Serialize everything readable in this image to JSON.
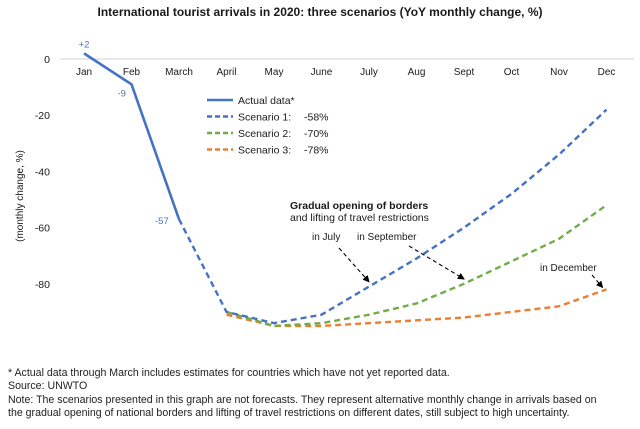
{
  "chart_data": {
    "type": "line",
    "title": "International tourist arrivals in 2020: three scenarios (YoY monthly change, %)",
    "ylabel": "(monthly change, %)",
    "xlabel": "",
    "categories": [
      "Jan",
      "Feb",
      "March",
      "April",
      "May",
      "June",
      "July",
      "Aug",
      "Sept",
      "Oct",
      "Nov",
      "Dec"
    ],
    "ylim": [
      -100,
      0
    ],
    "yticks": [
      0,
      -20,
      -40,
      -60,
      -80
    ],
    "grid": false,
    "legend_position": "center",
    "series": [
      {
        "name": "Actual data*",
        "style": "solid",
        "color": "#4472C4",
        "values": [
          2,
          -9,
          -57,
          null,
          null,
          null,
          null,
          null,
          null,
          null,
          null,
          null
        ]
      },
      {
        "name": "Scenario 1:",
        "pct": "-58%",
        "style": "dashed",
        "color": "#4472C4",
        "values": [
          null,
          null,
          -57,
          -90,
          -94,
          -91,
          -81,
          -71,
          -60,
          -48,
          -34,
          -18
        ]
      },
      {
        "name": "Scenario 2:",
        "pct": "-70%",
        "style": "dashed",
        "color": "#70AD47",
        "values": [
          null,
          null,
          null,
          -90,
          -95,
          -94,
          -91,
          -87,
          -80,
          -72,
          -64,
          -52
        ]
      },
      {
        "name": "Scenario 3:",
        "pct": "-78%",
        "style": "dashed",
        "color": "#ED7D31",
        "values": [
          null,
          null,
          null,
          -91,
          -95,
          -95,
          -94,
          -93,
          -92,
          -90,
          -88,
          -82
        ]
      }
    ],
    "data_labels": [
      {
        "text": "+2",
        "category": "Jan",
        "value": 2
      },
      {
        "text": "-9",
        "category": "Feb",
        "value": -9
      },
      {
        "text": "-57",
        "category": "March",
        "value": -57
      }
    ],
    "annotations": {
      "heading_line1": "Gradual opening of borders",
      "heading_line2": "and lifting of travel restrictions",
      "items": [
        {
          "text": "in July",
          "points_to_category": "July",
          "points_to_value": -80
        },
        {
          "text": "in September",
          "points_to_category": "Sept",
          "points_to_value": -79
        },
        {
          "text": "in December",
          "points_to_category": "Dec",
          "points_to_value": -82
        }
      ]
    },
    "colors": {
      "actual": "#4472C4",
      "scenario1": "#4472C4",
      "scenario2": "#70AD47",
      "scenario3": "#ED7D31",
      "text": "#1a1a1a",
      "label_blue": "#4472C4"
    }
  },
  "notes": {
    "footnote": "* Actual data through March includes estimates for countries which have not yet reported data.",
    "source": "Source: UNWTO",
    "note_line1": "Note: The scenarios presented in this graph are not forecasts. They represent alternative monthly change in arrivals based on",
    "note_line2": "the gradual opening of national borders and lifting of travel restrictions on different dates, still subject to high uncertainty."
  }
}
